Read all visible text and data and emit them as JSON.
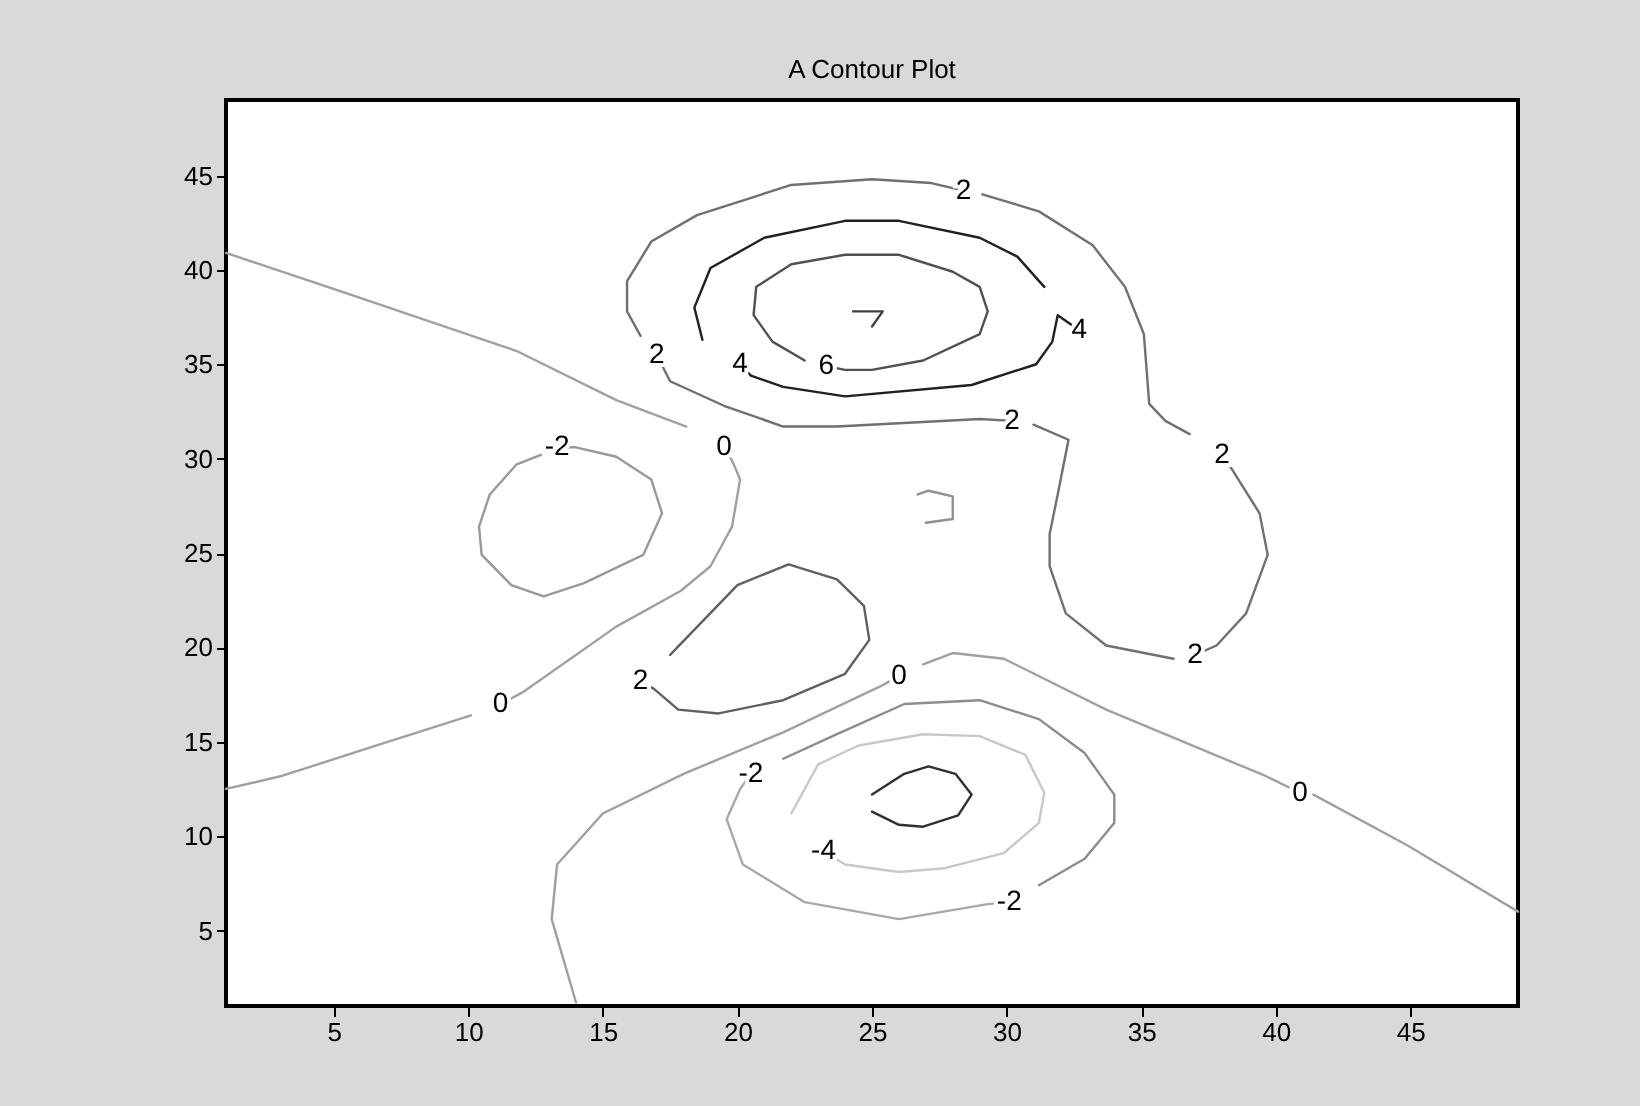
{
  "chart_data": {
    "type": "line",
    "title": "A Contour Plot",
    "xlim": [
      1,
      49
    ],
    "ylim": [
      1,
      49
    ],
    "xticks": [
      5,
      10,
      15,
      20,
      25,
      30,
      35,
      40,
      45
    ],
    "yticks": [
      5,
      10,
      15,
      20,
      25,
      30,
      35,
      40,
      45
    ],
    "grid": false,
    "series": [
      {
        "color": "#a0a0a0",
        "x": [
          1,
          5.6,
          11.8,
          15.5,
          18.1
        ],
        "values": [
          40.9,
          38.7,
          35.7,
          33.1,
          31.7
        ]
      },
      {
        "color": "#a0a0a0",
        "x": [
          19.5,
          19.8,
          20.1,
          19.8,
          19.0,
          17.9,
          15.5,
          12.0,
          11.2
        ],
        "values": [
          30.6,
          29.9,
          28.9,
          26.4,
          24.3,
          23.0,
          21.1,
          17.6,
          17.0
        ]
      },
      {
        "color": "#a0a0a0",
        "x": [
          10.1,
          6.8,
          3.1,
          1
        ],
        "values": [
          16.4,
          14.9,
          13.2,
          12.5
        ]
      },
      {
        "color": "#a0a0a0",
        "x": [
          26.0,
          25.4,
          21.7,
          18.0,
          15.0,
          13.3,
          13.1,
          14.0
        ],
        "values": [
          18.5,
          18.0,
          15.5,
          13.3,
          11.2,
          8.5,
          5.6,
          1.2
        ]
      },
      {
        "color": "#a0a0a0",
        "x": [
          26.9,
          28.0,
          29.9,
          33.7,
          39.6,
          40.9
        ],
        "values": [
          19.1,
          19.7,
          19.4,
          16.7,
          13.2,
          12.3
        ]
      },
      {
        "color": "#a0a0a0",
        "x": [
          41.4,
          44.9,
          49
        ],
        "values": [
          12.2,
          9.5,
          6.0
        ]
      },
      {
        "color": "#606060",
        "x": [
          17.5,
          20.0,
          21.9,
          23.7,
          24.7,
          24.9,
          24.0,
          21.7,
          19.3,
          17.8,
          16.9,
          16.4
        ],
        "values": [
          19.6,
          23.3,
          24.4,
          23.6,
          22.2,
          20.4,
          18.6,
          17.2,
          16.5,
          16.7,
          17.8,
          18.2
        ]
      },
      {
        "color": "#707070",
        "x": [
          30.2,
          29.0,
          23.7,
          21.7,
          19.5,
          17.5,
          17.0
        ],
        "values": [
          32.0,
          32.1,
          31.7,
          31.7,
          32.8,
          34.1,
          35.5
        ]
      },
      {
        "color": "#707070",
        "x": [
          16.4,
          15.9,
          15.9,
          16.8,
          18.5,
          22.0,
          25.0,
          27.2,
          28.4
        ],
        "values": [
          36.5,
          37.8,
          39.4,
          41.5,
          42.9,
          44.5,
          44.8,
          44.6,
          44.2
        ]
      },
      {
        "color": "#707070",
        "x": [
          29.1,
          31.2,
          33.2,
          34.4,
          35.1,
          35.3,
          35.9,
          36.8
        ],
        "values": [
          44.0,
          43.1,
          41.3,
          39.1,
          36.6,
          32.9,
          32.0,
          31.3
        ]
      },
      {
        "color": "#707070",
        "x": [
          38.0,
          38.3,
          39.4,
          39.7,
          38.9,
          37.8,
          37.0
        ],
        "values": [
          30.2,
          29.6,
          27.1,
          24.9,
          21.8,
          20.1,
          19.6
        ]
      },
      {
        "color": "#707070",
        "x": [
          36.2,
          33.7,
          32.2,
          31.6,
          31.6,
          31.9,
          32.3,
          31.0
        ],
        "values": [
          19.4,
          20.1,
          21.8,
          24.3,
          26.0,
          28.1,
          31.0,
          31.8
        ]
      },
      {
        "color": "#202020",
        "x": [
          20.1,
          20.5,
          21.7,
          24.0,
          28.7,
          31.1,
          31.7,
          31.9,
          32.7
        ],
        "values": [
          35.0,
          34.4,
          33.8,
          33.3,
          33.9,
          35.0,
          36.2,
          37.6,
          36.8
        ]
      },
      {
        "color": "#202020",
        "x": [
          31.4,
          30.4,
          29.0,
          26.0,
          24.0,
          21.0,
          19.0,
          18.4,
          18.7
        ],
        "values": [
          39.1,
          40.7,
          41.7,
          42.6,
          42.6,
          41.7,
          40.1,
          38.0,
          36.3
        ]
      },
      {
        "color": "#505050",
        "x": [
          23.3,
          24.0,
          25.0,
          26.9,
          29.0,
          29.3,
          29.0,
          28.0,
          26.0,
          24.0,
          22.0,
          20.7,
          20.6,
          21.3,
          22.5
        ],
        "values": [
          34.9,
          34.7,
          34.7,
          35.2,
          36.6,
          37.8,
          39.1,
          39.9,
          40.8,
          40.8,
          40.3,
          39.1,
          37.6,
          36.2,
          35.2
        ]
      },
      {
        "color": "#404040",
        "x": [
          24.3,
          25.4,
          25.0
        ],
        "values": [
          37.8,
          37.8,
          37.0
        ]
      },
      {
        "color": "#909090",
        "x": [
          26.7,
          27.1,
          28.0,
          28.0,
          27.0
        ],
        "values": [
          28.1,
          28.3,
          28.0,
          26.8,
          26.6
        ]
      },
      {
        "color": "#999999",
        "x": [
          13.3,
          14.0,
          15.5,
          16.8,
          17.2,
          16.5,
          14.3,
          12.8,
          11.6,
          10.5,
          10.4,
          10.8,
          11.8,
          12.7
        ],
        "values": [
          30.6,
          30.6,
          30.1,
          28.9,
          27.1,
          24.9,
          23.4,
          22.7,
          23.3,
          24.9,
          26.4,
          28.1,
          29.7,
          30.2
        ]
      },
      {
        "color": "#8c8c8c",
        "x": [
          21.7,
          23.7,
          26.2,
          29.0,
          31.2,
          32.9,
          34.0,
          34.0,
          32.9,
          31.2
        ],
        "values": [
          14.1,
          15.4,
          17.0,
          17.2,
          16.2,
          14.4,
          12.2,
          10.7,
          8.8,
          7.4
        ]
      },
      {
        "color": "#a8a8a8",
        "x": [
          30.1,
          29.3,
          26.0,
          22.5,
          20.2,
          19.6,
          20.1,
          20.5
        ],
        "values": [
          6.5,
          6.4,
          5.6,
          6.5,
          8.5,
          10.9,
          12.5,
          13.3
        ]
      },
      {
        "color": "#c8c8c8",
        "x": [
          22.0,
          23.0,
          24.5,
          26.9,
          29.0,
          30.7,
          31.4,
          31.2,
          29.9,
          27.7,
          26.0,
          24.0,
          23.2
        ],
        "values": [
          11.2,
          13.8,
          14.8,
          15.4,
          15.3,
          14.3,
          12.3,
          10.7,
          9.1,
          8.3,
          8.1,
          8.5,
          9.2
        ]
      },
      {
        "color": "#303030",
        "x": [
          25.0,
          26.2,
          27.1,
          28.1,
          28.7,
          28.2,
          26.9,
          26.0,
          25.0
        ],
        "values": [
          12.2,
          13.3,
          13.7,
          13.3,
          12.2,
          11.1,
          10.5,
          10.6,
          11.3
        ]
      }
    ],
    "annotations": [
      {
        "text": "2",
        "x": 28.4,
        "y": 44.2
      },
      {
        "text": "4",
        "x": 32.7,
        "y": 36.8
      },
      {
        "text": "2",
        "x": 17.0,
        "y": 35.5
      },
      {
        "text": "4",
        "x": 20.1,
        "y": 35.0
      },
      {
        "text": "6",
        "x": 23.3,
        "y": 34.9
      },
      {
        "text": "2",
        "x": 30.2,
        "y": 32.0
      },
      {
        "text": "2",
        "x": 38.0,
        "y": 30.2
      },
      {
        "text": "-2",
        "x": 13.3,
        "y": 30.6
      },
      {
        "text": "0",
        "x": 19.5,
        "y": 30.6
      },
      {
        "text": "2",
        "x": 37.0,
        "y": 19.6
      },
      {
        "text": "0",
        "x": 26.0,
        "y": 18.5
      },
      {
        "text": "2",
        "x": 16.4,
        "y": 18.2
      },
      {
        "text": "0",
        "x": 11.2,
        "y": 17.0
      },
      {
        "text": "-2",
        "x": 20.5,
        "y": 13.3
      },
      {
        "text": "0",
        "x": 40.9,
        "y": 12.3
      },
      {
        "text": "-4",
        "x": 23.2,
        "y": 9.2
      },
      {
        "text": "-2",
        "x": 30.1,
        "y": 6.5
      }
    ]
  }
}
